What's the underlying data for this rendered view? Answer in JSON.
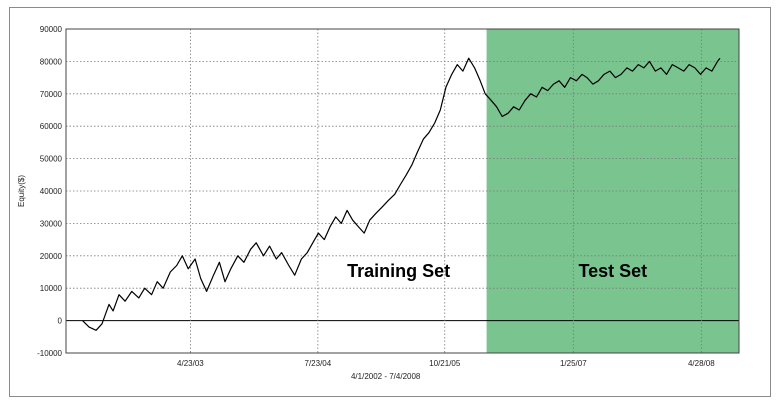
{
  "chart_data": {
    "type": "line",
    "title": "",
    "xlabel": "4/1/2002 - 7/4/2008",
    "ylabel": "Equity($)",
    "ylim": [
      -10000,
      90000
    ],
    "yticks": [
      -10000,
      0,
      10000,
      20000,
      30000,
      40000,
      50000,
      60000,
      70000,
      80000,
      90000
    ],
    "ytick_labels": [
      "-10000",
      "0",
      "10000",
      "20000",
      "30000",
      "40000",
      "50000",
      "60000",
      "70000",
      "80000",
      "90000"
    ],
    "xlim": [
      "2002-02-01",
      "2008-09-10"
    ],
    "xticks": [
      "2003-04-23",
      "2004-07-23",
      "2005-10-21",
      "2007-01-25",
      "2008-04-28"
    ],
    "xtick_labels": [
      "4/23/03",
      "7/23/04",
      "10/21/05",
      "1/25/07",
      "4/28/08"
    ],
    "grid": true,
    "regions": [
      {
        "label": "Training Set",
        "start": "2002-04-01",
        "end": "2006-03-20",
        "color": "#ffffff"
      },
      {
        "label": "Test Set",
        "start": "2006-03-20",
        "end": "2008-09-10",
        "color": "#7ac48f"
      }
    ],
    "series": [
      {
        "color": "#000000",
        "x": [
          "2002-04-01",
          "2002-04-25",
          "2002-05-20",
          "2002-06-10",
          "2002-07-05",
          "2002-07-20",
          "2002-08-10",
          "2002-09-01",
          "2002-09-25",
          "2002-10-20",
          "2002-11-10",
          "2002-12-05",
          "2002-12-25",
          "2003-01-15",
          "2003-02-10",
          "2003-03-05",
          "2003-03-25",
          "2003-04-15",
          "2003-05-10",
          "2003-05-30",
          "2003-06-20",
          "2003-07-15",
          "2003-08-05",
          "2003-08-25",
          "2003-09-15",
          "2003-10-10",
          "2003-11-01",
          "2003-11-25",
          "2003-12-15",
          "2004-01-10",
          "2004-02-01",
          "2004-02-25",
          "2004-03-15",
          "2004-04-10",
          "2004-05-01",
          "2004-05-25",
          "2004-06-15",
          "2004-07-05",
          "2004-07-25",
          "2004-08-15",
          "2004-09-05",
          "2004-09-25",
          "2004-10-15",
          "2004-11-05",
          "2004-11-25",
          "2004-12-15",
          "2005-01-05",
          "2005-01-25",
          "2005-02-15",
          "2005-03-10",
          "2005-04-01",
          "2005-04-25",
          "2005-05-15",
          "2005-06-05",
          "2005-06-25",
          "2005-07-15",
          "2005-08-05",
          "2005-08-25",
          "2005-09-15",
          "2005-10-05",
          "2005-10-25",
          "2005-11-15",
          "2005-12-05",
          "2005-12-25",
          "2006-01-15",
          "2006-02-05",
          "2006-02-25",
          "2006-03-15",
          "2006-04-05",
          "2006-04-25",
          "2006-05-15",
          "2006-06-05",
          "2006-06-25",
          "2006-07-15",
          "2006-08-05",
          "2006-08-25",
          "2006-09-15",
          "2006-10-05",
          "2006-10-25",
          "2006-11-15",
          "2006-12-05",
          "2006-12-25",
          "2007-01-15",
          "2007-02-05",
          "2007-02-25",
          "2007-03-15",
          "2007-04-05",
          "2007-04-25",
          "2007-05-15",
          "2007-06-05",
          "2007-06-25",
          "2007-07-15",
          "2007-08-05",
          "2007-08-25",
          "2007-09-15",
          "2007-10-05",
          "2007-10-25",
          "2007-11-15",
          "2007-12-05",
          "2007-12-25",
          "2008-01-15",
          "2008-02-05",
          "2008-02-25",
          "2008-03-15",
          "2008-04-05",
          "2008-04-25",
          "2008-05-15",
          "2008-06-05",
          "2008-06-25",
          "2008-07-04"
        ],
        "y": [
          0,
          -2000,
          -3000,
          -1000,
          5000,
          3000,
          8000,
          6000,
          9000,
          7000,
          10000,
          8000,
          12000,
          10000,
          15000,
          17000,
          20000,
          16000,
          19000,
          13000,
          9000,
          14000,
          18000,
          12000,
          16000,
          20000,
          18000,
          22000,
          24000,
          20000,
          23000,
          19000,
          21000,
          17000,
          14000,
          19000,
          21000,
          24000,
          27000,
          25000,
          29000,
          32000,
          30000,
          34000,
          31000,
          29000,
          27000,
          31000,
          33000,
          35000,
          37000,
          39000,
          42000,
          45000,
          48000,
          52000,
          56000,
          58000,
          61000,
          65000,
          72000,
          76000,
          79000,
          77000,
          81000,
          78000,
          74000,
          70000,
          68000,
          66000,
          63000,
          64000,
          66000,
          65000,
          68000,
          70000,
          69000,
          72000,
          71000,
          73000,
          74000,
          72000,
          75000,
          74000,
          76000,
          75000,
          73000,
          74000,
          76000,
          77000,
          75000,
          76000,
          78000,
          77000,
          79000,
          78000,
          80000,
          77000,
          78000,
          76000,
          79000,
          78000,
          77000,
          79000,
          78000,
          76000,
          78000,
          77000,
          80000,
          81000
        ]
      }
    ]
  }
}
